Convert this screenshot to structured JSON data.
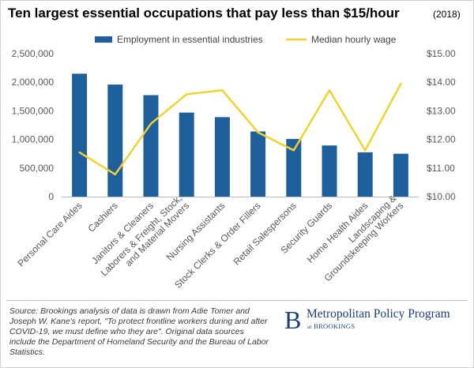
{
  "title": "Ten largest essential occupations that pay less than $15/hour",
  "title_note": "(2018)",
  "source_text": "Source: Brookings analysis of data is drawn from Adie Tomer and Joseph W. Kane's report, \"To protect frontline workers during and after COVID-19, we must define who they are\". Original data sources include the Department of Homeland Security and the Bureau of Labor Statistics.",
  "logo": {
    "letter": "B",
    "name": "Metropolitan Policy Program",
    "sub_at": "at",
    "sub_org": "BROOKINGS"
  },
  "colors": {
    "bar": "#1f5f9c",
    "line": "#f1d22e",
    "tick_text": "#595959",
    "logo": "#1b3f78"
  },
  "chart_data": {
    "type": "bar",
    "categories": [
      "Personal Care Aides",
      "Cashiers",
      "Janitors & Cleaners",
      "Laborers & Freight, Stock, and Material Movers",
      "Nursing Assistants",
      "Stock Clerks & Order Fillers",
      "Retail Salespersons",
      "Security Guards",
      "Home Health Aides",
      "Landscaping & Groundskeeping Workers"
    ],
    "category_lines": [
      [
        "Personal Care Aides"
      ],
      [
        "Cashiers"
      ],
      [
        "Janitors & Cleaners"
      ],
      [
        "Laborers & Freight, Stock,",
        "and Material Movers"
      ],
      [
        "Nursing Assistants"
      ],
      [
        "Stock Clerks & Order Fillers"
      ],
      [
        "Retail Salespersons"
      ],
      [
        "Security Guards"
      ],
      [
        "Home Health Aides"
      ],
      [
        "Landscaping &",
        "Groundskeeping Workers"
      ]
    ],
    "series": [
      {
        "name": "Employment in essential industries",
        "type": "bar",
        "axis": "left",
        "values": [
          2150000,
          1960000,
          1775000,
          1470000,
          1390000,
          1140000,
          1010000,
          895000,
          775000,
          750000
        ]
      },
      {
        "name": "Median hourly wage",
        "type": "line",
        "axis": "right",
        "values": [
          11.55,
          10.78,
          12.55,
          13.58,
          13.72,
          12.25,
          11.62,
          13.72,
          11.62,
          13.95
        ]
      }
    ],
    "y_left": {
      "min": 0,
      "max": 2500000,
      "ticks": [
        0,
        500000,
        1000000,
        1500000,
        2000000,
        2500000
      ],
      "tick_labels": [
        "0",
        "500,000",
        "1,000,000",
        "1,500,000",
        "2,000,000",
        "2,500,000"
      ]
    },
    "y_right": {
      "min": 10,
      "max": 15,
      "ticks": [
        10,
        11,
        12,
        13,
        14,
        15
      ],
      "tick_labels": [
        "$10.00",
        "$11.00",
        "$12.00",
        "$13.00",
        "$14.00",
        "$15.00"
      ]
    },
    "xlabel": "",
    "ylabel": "",
    "grid": false,
    "legend_position": "top"
  }
}
